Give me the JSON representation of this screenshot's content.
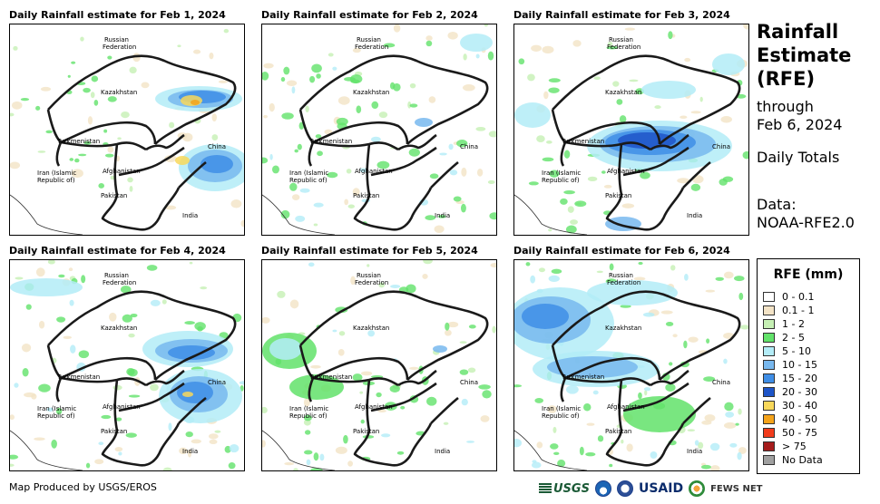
{
  "panels": [
    {
      "title": "Daily Rainfall estimate for Feb 1, 2024"
    },
    {
      "title": "Daily Rainfall estimate for Feb 2, 2024"
    },
    {
      "title": "Daily Rainfall estimate for Feb 3, 2024"
    },
    {
      "title": "Daily Rainfall estimate for Feb 4, 2024"
    },
    {
      "title": "Daily Rainfall estimate for Feb 5, 2024"
    },
    {
      "title": "Daily Rainfall estimate for Feb 6, 2024"
    }
  ],
  "map_labels": {
    "russia_line1": "Russian",
    "russia_line2": "Federation",
    "kazakhstan": "Kazakhstan",
    "turkmenistan": "Turkmenistan",
    "china": "China",
    "iran_line1": "Iran  (Islamic",
    "iran_line2": "Republic of)",
    "afghanistan": "Afghanistan",
    "pakistan": "Pakistan",
    "india": "India"
  },
  "sidebar": {
    "title_line1": "Rainfall",
    "title_line2": "Estimate",
    "title_line3": "(RFE)",
    "through": "through",
    "date": "Feb 6, 2024",
    "totals": "Daily Totals",
    "data_label": "Data:",
    "data_source": "NOAA-RFE2.0"
  },
  "legend": {
    "title": "RFE (mm)",
    "items": [
      {
        "label": "0 - 0.1",
        "color": "#ffffff"
      },
      {
        "label": "0.1 - 1",
        "color": "#f3e3c6"
      },
      {
        "label": "1 - 2",
        "color": "#c6f0b4"
      },
      {
        "label": "2 - 5",
        "color": "#62e26a"
      },
      {
        "label": "5 - 10",
        "color": "#b3ecf7"
      },
      {
        "label": "10 - 15",
        "color": "#78b8ee"
      },
      {
        "label": "15 - 20",
        "color": "#3f8ee6"
      },
      {
        "label": "20 - 30",
        "color": "#1e55c8"
      },
      {
        "label": "30 - 40",
        "color": "#f8d85a"
      },
      {
        "label": "40 - 50",
        "color": "#f5a31a"
      },
      {
        "label": "50 - 75",
        "color": "#f23c1c"
      },
      {
        "label": "> 75",
        "color": "#a51c1c"
      },
      {
        "label": "No Data",
        "color": "#a0a0a0"
      }
    ]
  },
  "footer": {
    "credit": "Map Produced by USGS/EROS",
    "logo_usgs": "USGS",
    "logo_usaid": "USAID",
    "logo_fews": "FEWS NET"
  }
}
